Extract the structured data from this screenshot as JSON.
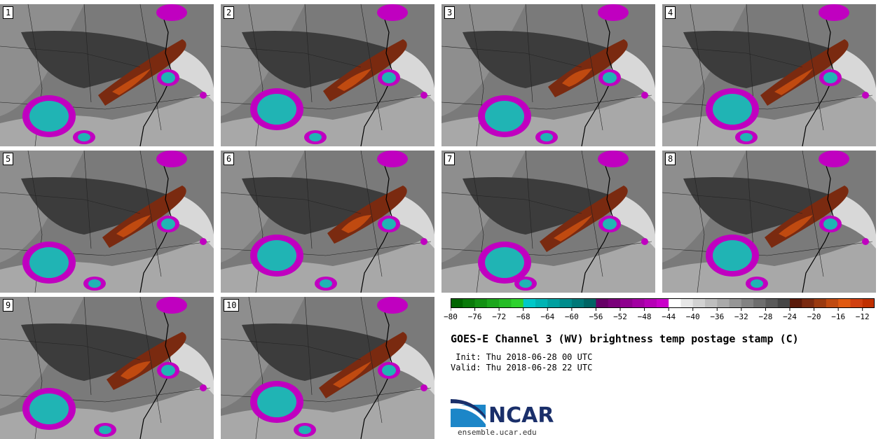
{
  "chart_data": {
    "type": "heatmap",
    "title": "GOES-E Channel 3 (WV) brightness temp postage stamp (C)",
    "init_label": " Init: Thu 2018-06-28 00 UTC",
    "valid_label": "Valid: Thu 2018-06-28 22 UTC",
    "panels": [
      "1",
      "2",
      "3",
      "4",
      "5",
      "6",
      "7",
      "8",
      "9",
      "10"
    ],
    "colorbar": {
      "min": -80,
      "max": -10,
      "step": 2,
      "ticks": [
        -80,
        -76,
        -72,
        -68,
        -64,
        -60,
        -56,
        -52,
        -48,
        -44,
        -40,
        -36,
        -32,
        -28,
        -24,
        -20,
        -16,
        -12
      ],
      "tick_labels": [
        "−80",
        "−76",
        "−72",
        "−68",
        "−64",
        "−60",
        "−56",
        "−52",
        "−48",
        "−44",
        "−40",
        "−36",
        "−32",
        "−28",
        "−24",
        "−20",
        "−16",
        "−12"
      ],
      "colors": [
        "#006400",
        "#0a7a0a",
        "#139013",
        "#1ca61c",
        "#25bc25",
        "#2ed22e",
        "#00c8c8",
        "#00b4b4",
        "#00a0a0",
        "#008c8c",
        "#007878",
        "#006464",
        "#660066",
        "#7a007a",
        "#8e008e",
        "#a200a2",
        "#b600b6",
        "#ca00ca",
        "#ffffff",
        "#e6e6e6",
        "#d2d2d2",
        "#bebebe",
        "#aaaaaa",
        "#969696",
        "#828282",
        "#6e6e6e",
        "#5a5a5a",
        "#464646",
        "#5a1a0a",
        "#7a2a10",
        "#9a3a10",
        "#c04a10",
        "#e05a10",
        "#d04010",
        "#c03000"
      ]
    }
  },
  "footer": {
    "logo_text": "NCAR",
    "url": "ensemble.ucar.edu"
  },
  "colors": {
    "background": "#ffffff",
    "cold": "#00b4b4",
    "purple": "#c000c0",
    "warm": "#8a3010"
  }
}
